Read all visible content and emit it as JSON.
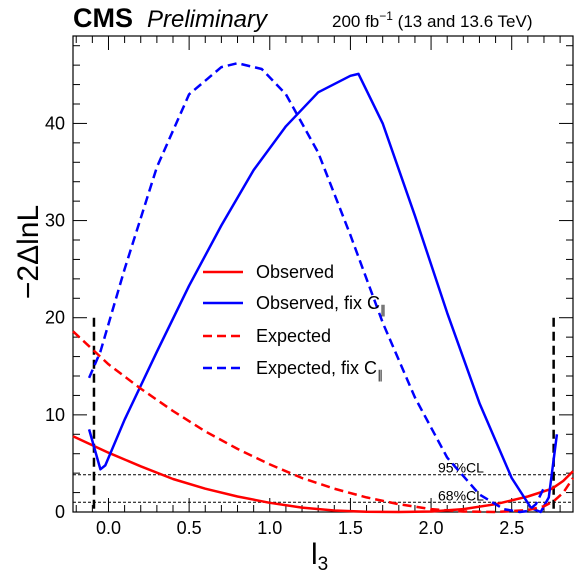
{
  "header": {
    "experiment": "CMS",
    "status": "Preliminary",
    "lumi_value": "200 fb",
    "lumi_exponent": "−1",
    "lumi_energy": " (13 and 13.6 TeV)"
  },
  "chart_data": {
    "type": "line",
    "xlabel": "l",
    "xlabel_sub": "3",
    "ylabel": "−2ΔlnL",
    "xlim": [
      -0.22,
      2.88
    ],
    "ylim": [
      0,
      49
    ],
    "xticks": [
      0.0,
      0.5,
      1.0,
      1.5,
      2.0,
      2.5
    ],
    "xtick_labels": [
      "0.0",
      "0.5",
      "1.0",
      "1.5",
      "2.0",
      "2.5"
    ],
    "yticks": [
      0,
      10,
      20,
      30,
      40
    ],
    "ytick_labels": [
      "0",
      "10",
      "20",
      "30",
      "40"
    ],
    "grid": false,
    "legend_position": "center",
    "series": [
      {
        "name": "Observed",
        "color": "#ff0000",
        "dash": false,
        "x": [
          -0.22,
          0.0,
          0.2,
          0.4,
          0.6,
          0.8,
          1.0,
          1.2,
          1.4,
          1.6,
          1.8,
          2.0,
          2.2,
          2.4,
          2.6,
          2.75,
          2.82,
          2.88
        ],
        "y": [
          7.8,
          6.1,
          4.7,
          3.4,
          2.4,
          1.6,
          0.95,
          0.45,
          0.15,
          0.02,
          0.0,
          0.05,
          0.3,
          0.8,
          1.6,
          2.4,
          3.2,
          4.2
        ]
      },
      {
        "name": "Observed, fix C_∥",
        "color": "#0000ff",
        "dash": false,
        "x": [
          -0.12,
          -0.05,
          -0.02,
          0.1,
          0.3,
          0.5,
          0.7,
          0.9,
          1.1,
          1.3,
          1.5,
          1.55,
          1.7,
          1.9,
          2.1,
          2.3,
          2.5,
          2.62,
          2.68,
          2.73,
          2.78
        ],
        "y": [
          8.5,
          4.4,
          4.8,
          9.5,
          16.5,
          23.3,
          29.5,
          35.2,
          39.7,
          43.2,
          44.9,
          45.1,
          40.0,
          30.5,
          20.5,
          11.2,
          3.5,
          0.4,
          0.0,
          1.5,
          8.0
        ]
      },
      {
        "name": "Expected",
        "color": "#ff0000",
        "dash": true,
        "x": [
          -0.22,
          0.0,
          0.2,
          0.4,
          0.6,
          0.8,
          1.0,
          1.2,
          1.4,
          1.6,
          1.8,
          2.0,
          2.2,
          2.4,
          2.6,
          2.7,
          2.76,
          2.82,
          2.88
        ],
        "y": [
          18.6,
          15.2,
          12.7,
          10.4,
          8.3,
          6.5,
          4.9,
          3.5,
          2.4,
          1.5,
          0.8,
          0.3,
          0.05,
          0.0,
          0.2,
          0.6,
          1.1,
          2.0,
          3.5
        ]
      },
      {
        "name": "Expected, fix C_∥",
        "color": "#0000ff",
        "dash": true,
        "x": [
          -0.12,
          -0.05,
          0.1,
          0.3,
          0.5,
          0.7,
          0.8,
          0.95,
          1.1,
          1.3,
          1.5,
          1.7,
          1.9,
          2.1,
          2.3,
          2.45,
          2.55,
          2.6,
          2.65,
          2.7
        ],
        "y": [
          13.8,
          16.5,
          25.0,
          35.5,
          43.0,
          45.8,
          46.2,
          45.6,
          43.0,
          37.0,
          28.5,
          19.5,
          11.8,
          5.6,
          1.8,
          0.3,
          0.0,
          0.1,
          0.8,
          2.5
        ]
      }
    ],
    "thresholds": [
      {
        "y": 3.84,
        "label": "95%CL"
      },
      {
        "y": 1.0,
        "label": "68%CL"
      }
    ],
    "boundaries": [
      -0.09,
      2.76
    ]
  }
}
